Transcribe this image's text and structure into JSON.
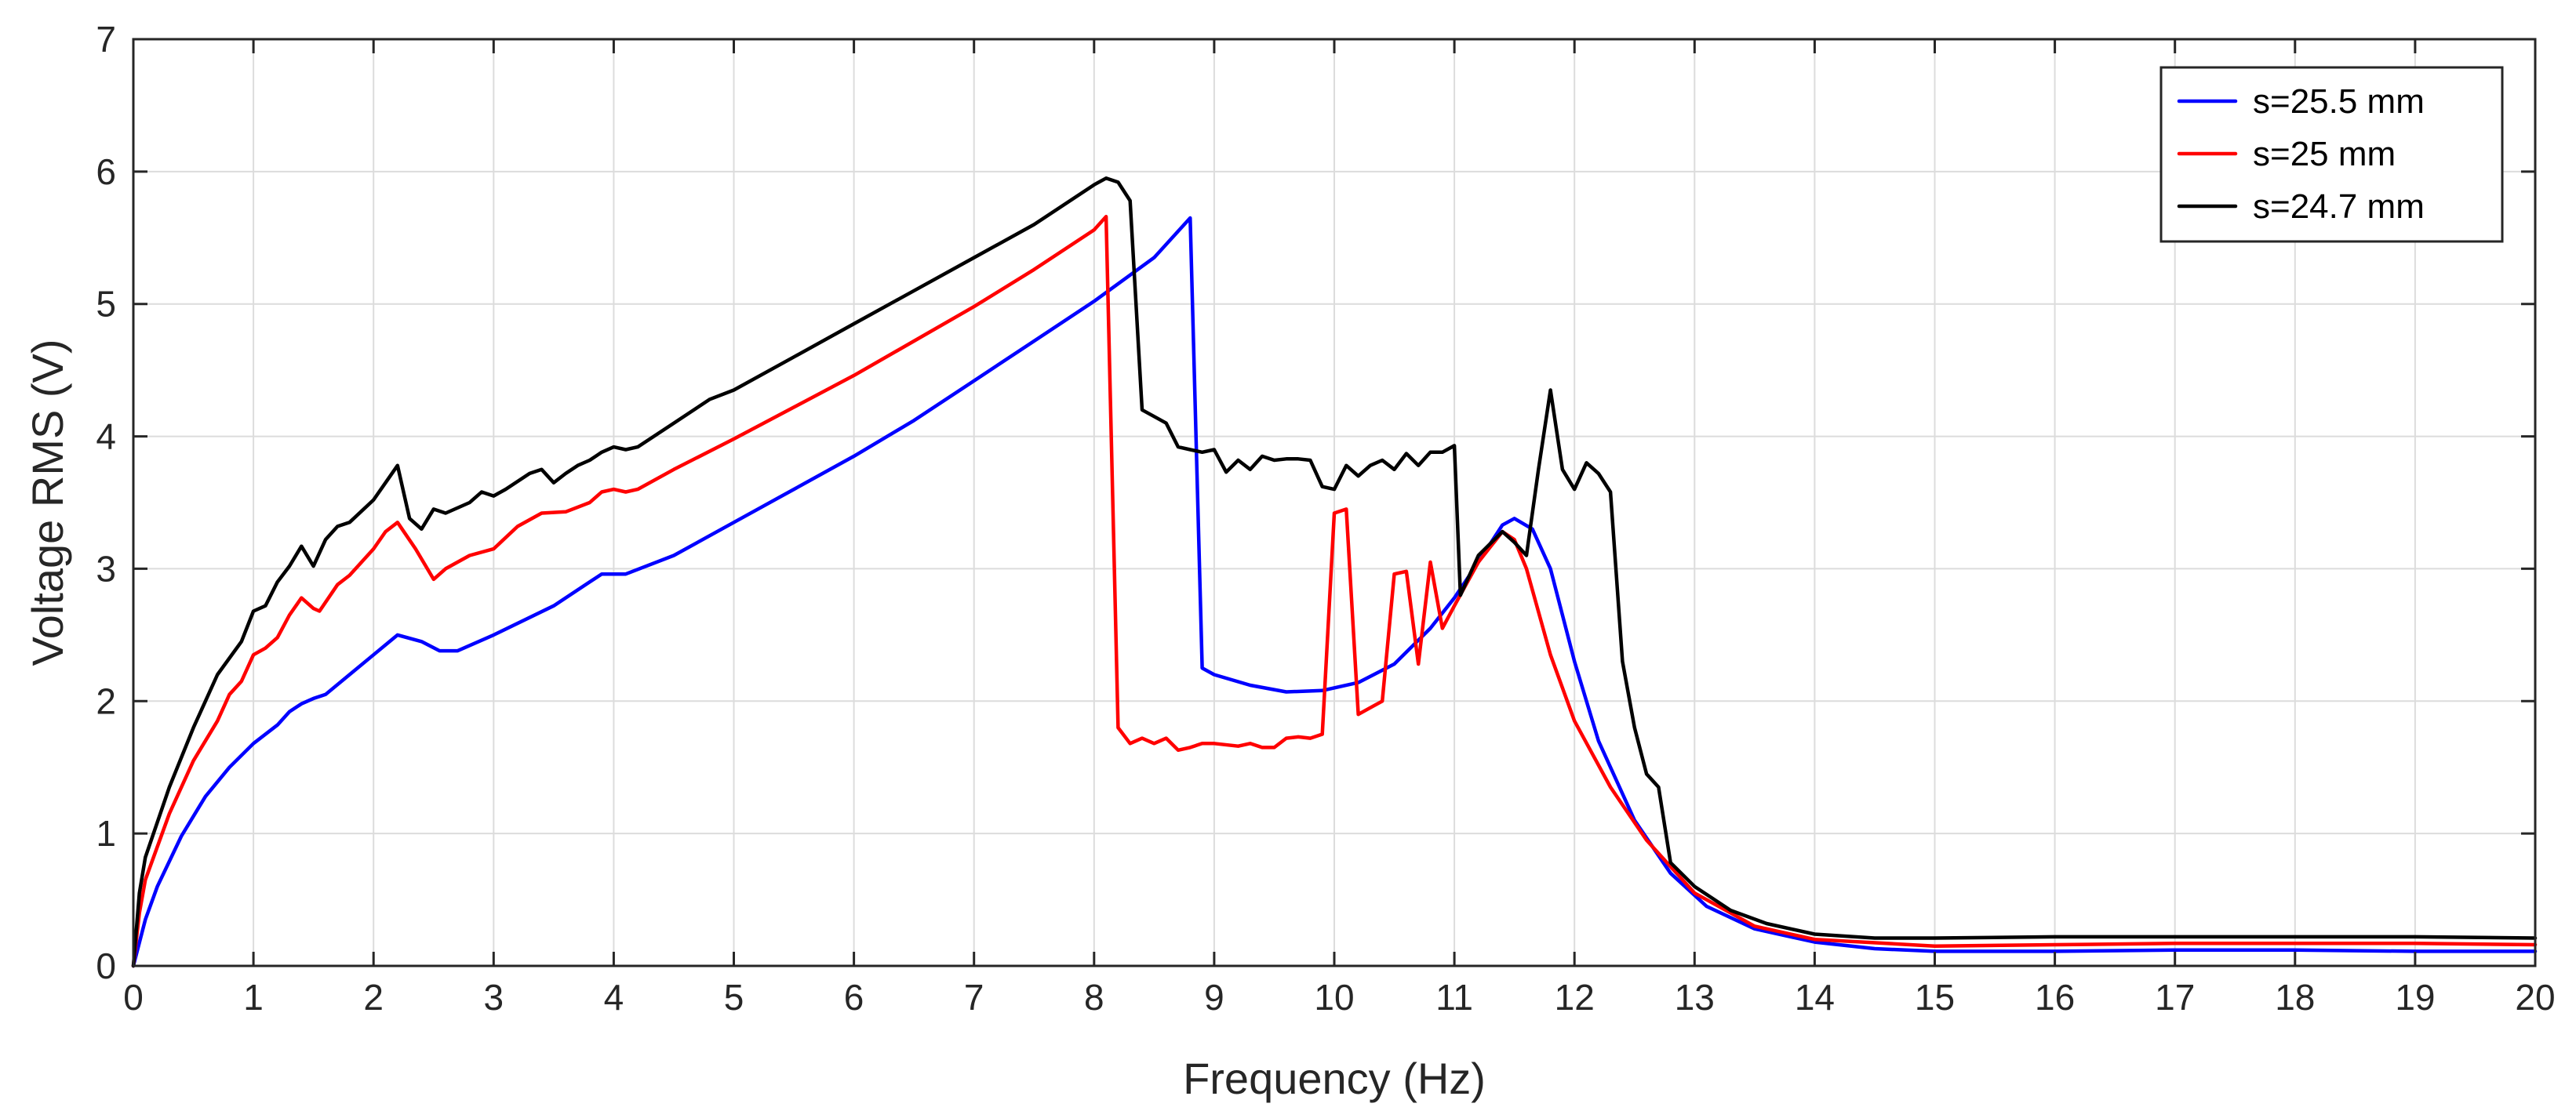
{
  "chart_data": {
    "type": "line",
    "title": "",
    "xlabel": "Frequency (Hz)",
    "ylabel": "Voltage RMS (V)",
    "xlim": [
      0,
      20
    ],
    "ylim": [
      0,
      7
    ],
    "xticks": [
      0,
      1,
      2,
      3,
      4,
      5,
      6,
      7,
      8,
      9,
      10,
      11,
      12,
      13,
      14,
      15,
      16,
      17,
      18,
      19,
      20
    ],
    "yticks": [
      0,
      1,
      2,
      3,
      4,
      5,
      6,
      7
    ],
    "xtick_labels": [
      "0",
      "1",
      "2",
      "3",
      "4",
      "5",
      "6",
      "7",
      "8",
      "9",
      "10",
      "11",
      "12",
      "13",
      "14",
      "15",
      "16",
      "17",
      "18",
      "19",
      "20"
    ],
    "ytick_labels": [
      "0",
      "1",
      "2",
      "3",
      "4",
      "5",
      "6",
      "7"
    ],
    "grid": true,
    "legend_position": "top-right",
    "series": [
      {
        "name": "s=25.5 mm",
        "color": "#0000ff",
        "points": [
          [
            0,
            0
          ],
          [
            0.1,
            0.35
          ],
          [
            0.2,
            0.6
          ],
          [
            0.4,
            0.98
          ],
          [
            0.6,
            1.28
          ],
          [
            0.8,
            1.5
          ],
          [
            1.0,
            1.68
          ],
          [
            1.2,
            1.82
          ],
          [
            1.3,
            1.92
          ],
          [
            1.4,
            1.98
          ],
          [
            1.5,
            2.02
          ],
          [
            1.6,
            2.05
          ],
          [
            1.8,
            2.2
          ],
          [
            2.0,
            2.35
          ],
          [
            2.2,
            2.5
          ],
          [
            2.4,
            2.45
          ],
          [
            2.55,
            2.38
          ],
          [
            2.7,
            2.38
          ],
          [
            3.0,
            2.5
          ],
          [
            3.5,
            2.72
          ],
          [
            3.8,
            2.9
          ],
          [
            3.9,
            2.96
          ],
          [
            4.1,
            2.96
          ],
          [
            4.5,
            3.1
          ],
          [
            5.0,
            3.35
          ],
          [
            5.5,
            3.6
          ],
          [
            6.0,
            3.85
          ],
          [
            6.5,
            4.12
          ],
          [
            7.0,
            4.42
          ],
          [
            7.5,
            4.72
          ],
          [
            8.0,
            5.02
          ],
          [
            8.5,
            5.35
          ],
          [
            8.8,
            5.65
          ],
          [
            8.9,
            2.25
          ],
          [
            9.0,
            2.2
          ],
          [
            9.3,
            2.12
          ],
          [
            9.6,
            2.07
          ],
          [
            9.9,
            2.08
          ],
          [
            10.2,
            2.14
          ],
          [
            10.5,
            2.28
          ],
          [
            10.8,
            2.55
          ],
          [
            11.0,
            2.78
          ],
          [
            11.2,
            3.05
          ],
          [
            11.4,
            3.33
          ],
          [
            11.5,
            3.38
          ],
          [
            11.65,
            3.3
          ],
          [
            11.8,
            3.0
          ],
          [
            12.0,
            2.3
          ],
          [
            12.2,
            1.7
          ],
          [
            12.5,
            1.1
          ],
          [
            12.8,
            0.7
          ],
          [
            13.1,
            0.45
          ],
          [
            13.5,
            0.28
          ],
          [
            14.0,
            0.18
          ],
          [
            14.5,
            0.13
          ],
          [
            15.0,
            0.11
          ],
          [
            16.0,
            0.11
          ],
          [
            17.0,
            0.12
          ],
          [
            18.0,
            0.12
          ],
          [
            19.0,
            0.11
          ],
          [
            20.0,
            0.11
          ]
        ]
      },
      {
        "name": "s=25 mm",
        "color": "#ff0000",
        "points": [
          [
            0,
            0
          ],
          [
            0.05,
            0.4
          ],
          [
            0.1,
            0.65
          ],
          [
            0.3,
            1.15
          ],
          [
            0.5,
            1.55
          ],
          [
            0.7,
            1.85
          ],
          [
            0.8,
            2.05
          ],
          [
            0.9,
            2.15
          ],
          [
            1.0,
            2.35
          ],
          [
            1.1,
            2.4
          ],
          [
            1.2,
            2.48
          ],
          [
            1.3,
            2.65
          ],
          [
            1.4,
            2.78
          ],
          [
            1.5,
            2.7
          ],
          [
            1.55,
            2.68
          ],
          [
            1.7,
            2.88
          ],
          [
            1.8,
            2.95
          ],
          [
            2.0,
            3.15
          ],
          [
            2.1,
            3.28
          ],
          [
            2.2,
            3.35
          ],
          [
            2.35,
            3.15
          ],
          [
            2.5,
            2.92
          ],
          [
            2.6,
            3.0
          ],
          [
            2.8,
            3.1
          ],
          [
            3.0,
            3.15
          ],
          [
            3.2,
            3.32
          ],
          [
            3.4,
            3.42
          ],
          [
            3.6,
            3.43
          ],
          [
            3.8,
            3.5
          ],
          [
            3.9,
            3.58
          ],
          [
            4.0,
            3.6
          ],
          [
            4.1,
            3.58
          ],
          [
            4.2,
            3.6
          ],
          [
            4.5,
            3.75
          ],
          [
            5.0,
            3.98
          ],
          [
            5.5,
            4.22
          ],
          [
            6.0,
            4.46
          ],
          [
            6.5,
            4.72
          ],
          [
            7.0,
            4.98
          ],
          [
            7.5,
            5.26
          ],
          [
            8.0,
            5.56
          ],
          [
            8.1,
            5.66
          ],
          [
            8.2,
            1.8
          ],
          [
            8.3,
            1.68
          ],
          [
            8.4,
            1.72
          ],
          [
            8.5,
            1.68
          ],
          [
            8.6,
            1.72
          ],
          [
            8.7,
            1.63
          ],
          [
            8.8,
            1.65
          ],
          [
            8.9,
            1.68
          ],
          [
            9.0,
            1.68
          ],
          [
            9.2,
            1.66
          ],
          [
            9.3,
            1.68
          ],
          [
            9.4,
            1.65
          ],
          [
            9.5,
            1.65
          ],
          [
            9.6,
            1.72
          ],
          [
            9.7,
            1.73
          ],
          [
            9.8,
            1.72
          ],
          [
            9.9,
            1.75
          ],
          [
            10.0,
            3.42
          ],
          [
            10.1,
            3.45
          ],
          [
            10.2,
            1.9
          ],
          [
            10.3,
            1.95
          ],
          [
            10.4,
            2.0
          ],
          [
            10.5,
            2.96
          ],
          [
            10.6,
            2.98
          ],
          [
            10.7,
            2.28
          ],
          [
            10.8,
            3.05
          ],
          [
            10.9,
            2.55
          ],
          [
            11.0,
            2.72
          ],
          [
            11.2,
            3.05
          ],
          [
            11.4,
            3.28
          ],
          [
            11.5,
            3.22
          ],
          [
            11.6,
            3.0
          ],
          [
            11.8,
            2.35
          ],
          [
            12.0,
            1.85
          ],
          [
            12.3,
            1.35
          ],
          [
            12.6,
            0.95
          ],
          [
            13.0,
            0.55
          ],
          [
            13.5,
            0.3
          ],
          [
            14.0,
            0.2
          ],
          [
            15.0,
            0.15
          ],
          [
            16.0,
            0.16
          ],
          [
            17.0,
            0.17
          ],
          [
            18.0,
            0.17
          ],
          [
            19.0,
            0.17
          ],
          [
            20.0,
            0.16
          ]
        ]
      },
      {
        "name": "s=24.7 mm",
        "color": "#000000",
        "points": [
          [
            0,
            0
          ],
          [
            0.05,
            0.55
          ],
          [
            0.1,
            0.82
          ],
          [
            0.3,
            1.35
          ],
          [
            0.5,
            1.8
          ],
          [
            0.7,
            2.2
          ],
          [
            0.9,
            2.45
          ],
          [
            1.0,
            2.68
          ],
          [
            1.1,
            2.72
          ],
          [
            1.2,
            2.9
          ],
          [
            1.3,
            3.02
          ],
          [
            1.4,
            3.17
          ],
          [
            1.5,
            3.02
          ],
          [
            1.6,
            3.22
          ],
          [
            1.7,
            3.32
          ],
          [
            1.8,
            3.35
          ],
          [
            2.0,
            3.52
          ],
          [
            2.1,
            3.65
          ],
          [
            2.2,
            3.78
          ],
          [
            2.3,
            3.38
          ],
          [
            2.4,
            3.3
          ],
          [
            2.5,
            3.45
          ],
          [
            2.6,
            3.42
          ],
          [
            2.8,
            3.5
          ],
          [
            2.9,
            3.58
          ],
          [
            3.0,
            3.55
          ],
          [
            3.1,
            3.6
          ],
          [
            3.3,
            3.72
          ],
          [
            3.4,
            3.75
          ],
          [
            3.5,
            3.65
          ],
          [
            3.6,
            3.72
          ],
          [
            3.7,
            3.78
          ],
          [
            3.8,
            3.82
          ],
          [
            3.9,
            3.88
          ],
          [
            4.0,
            3.92
          ],
          [
            4.1,
            3.9
          ],
          [
            4.2,
            3.92
          ],
          [
            4.5,
            4.1
          ],
          [
            4.8,
            4.28
          ],
          [
            5.0,
            4.35
          ],
          [
            5.5,
            4.6
          ],
          [
            6.0,
            4.85
          ],
          [
            6.5,
            5.1
          ],
          [
            7.0,
            5.35
          ],
          [
            7.5,
            5.6
          ],
          [
            7.8,
            5.78
          ],
          [
            8.0,
            5.9
          ],
          [
            8.1,
            5.95
          ],
          [
            8.2,
            5.92
          ],
          [
            8.3,
            5.78
          ],
          [
            8.4,
            4.2
          ],
          [
            8.5,
            4.15
          ],
          [
            8.6,
            4.1
          ],
          [
            8.7,
            3.92
          ],
          [
            8.8,
            3.9
          ],
          [
            8.9,
            3.88
          ],
          [
            9.0,
            3.9
          ],
          [
            9.1,
            3.73
          ],
          [
            9.2,
            3.82
          ],
          [
            9.3,
            3.75
          ],
          [
            9.4,
            3.85
          ],
          [
            9.5,
            3.82
          ],
          [
            9.6,
            3.83
          ],
          [
            9.7,
            3.83
          ],
          [
            9.8,
            3.82
          ],
          [
            9.9,
            3.62
          ],
          [
            10.0,
            3.6
          ],
          [
            10.1,
            3.78
          ],
          [
            10.2,
            3.7
          ],
          [
            10.3,
            3.78
          ],
          [
            10.4,
            3.82
          ],
          [
            10.5,
            3.75
          ],
          [
            10.6,
            3.87
          ],
          [
            10.7,
            3.78
          ],
          [
            10.8,
            3.88
          ],
          [
            10.9,
            3.88
          ],
          [
            11.0,
            3.93
          ],
          [
            11.05,
            2.8
          ],
          [
            11.2,
            3.1
          ],
          [
            11.4,
            3.28
          ],
          [
            11.5,
            3.2
          ],
          [
            11.6,
            3.1
          ],
          [
            11.7,
            3.75
          ],
          [
            11.8,
            4.35
          ],
          [
            11.9,
            3.75
          ],
          [
            12.0,
            3.6
          ],
          [
            12.1,
            3.8
          ],
          [
            12.2,
            3.72
          ],
          [
            12.3,
            3.58
          ],
          [
            12.4,
            2.3
          ],
          [
            12.5,
            1.8
          ],
          [
            12.6,
            1.45
          ],
          [
            12.7,
            1.35
          ],
          [
            12.8,
            0.78
          ],
          [
            13.0,
            0.6
          ],
          [
            13.3,
            0.42
          ],
          [
            13.6,
            0.32
          ],
          [
            14.0,
            0.24
          ],
          [
            14.5,
            0.21
          ],
          [
            15.0,
            0.21
          ],
          [
            16.0,
            0.22
          ],
          [
            17.0,
            0.22
          ],
          [
            18.0,
            0.22
          ],
          [
            19.0,
            0.22
          ],
          [
            20.0,
            0.21
          ]
        ]
      }
    ]
  }
}
